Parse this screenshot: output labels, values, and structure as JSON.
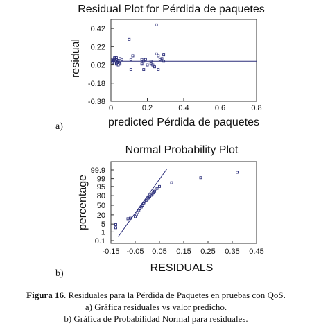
{
  "chart_data": [
    {
      "type": "scatter",
      "title": "Residual Plot for Pérdida de paquetes",
      "xlabel": "predicted Pérdida de paquetes",
      "ylabel": "residual",
      "xlim": [
        0,
        0.8
      ],
      "ylim": [
        -0.38,
        0.52
      ],
      "xticks": [
        "0",
        "0.2",
        "0.4",
        "0.6",
        "0.8"
      ],
      "yticks": [
        "-0.38",
        "-0.18",
        "0.02",
        "0.22",
        "0.42"
      ],
      "reference_line_y": 0.06,
      "x": [
        0.01,
        0.01,
        0.015,
        0.02,
        0.02,
        0.025,
        0.03,
        0.03,
        0.035,
        0.04,
        0.04,
        0.045,
        0.05,
        0.03,
        0.04,
        0.02,
        0.05,
        0.06,
        0.1,
        0.11,
        0.12,
        0.11,
        0.18,
        0.17,
        0.19,
        0.2,
        0.21,
        0.17,
        0.22,
        0.23,
        0.22,
        0.24,
        0.18,
        0.25,
        0.26,
        0.27,
        0.29,
        0.29,
        0.28,
        0.26,
        0.25
      ],
      "y": [
        0.08,
        0.05,
        0.07,
        0.04,
        0.09,
        0.06,
        0.03,
        0.08,
        0.05,
        0.02,
        0.06,
        0.04,
        0.03,
        0.1,
        0.07,
        0.1,
        0.09,
        0.08,
        0.3,
        0.08,
        0.12,
        -0.03,
        0.06,
        0.03,
        0.08,
        0.02,
        0.04,
        0.08,
        0.03,
        0.02,
        0.06,
        0.0,
        -0.03,
        0.46,
        0.12,
        0.08,
        0.13,
        0.06,
        0.09,
        -0.03,
        0.14
      ]
    },
    {
      "type": "scatter",
      "title": "Normal Probability Plot",
      "xlabel": "RESIDUALS",
      "ylabel": "percentage",
      "xlim": [
        -0.15,
        0.45
      ],
      "xticks": [
        "-0.15",
        "-0.05",
        "0.05",
        "0.15",
        "0.25",
        "0.35",
        "0.45"
      ],
      "yticks": [
        "0.1",
        "1",
        "5",
        "20",
        "50",
        "80",
        "95",
        "99",
        "99.9"
      ],
      "ytick_values": [
        0.1,
        1,
        5,
        20,
        50,
        80,
        95,
        99,
        99.9
      ],
      "x": [
        -0.13,
        -0.13,
        -0.08,
        -0.07,
        -0.05,
        -0.045,
        -0.04,
        -0.035,
        -0.03,
        -0.025,
        -0.02,
        -0.015,
        -0.01,
        -0.005,
        0.0,
        0.005,
        0.01,
        0.015,
        0.02,
        0.025,
        0.03,
        0.035,
        0.04,
        0.05,
        0.1,
        0.22,
        0.37
      ],
      "y": [
        2.5,
        4.5,
        12,
        13,
        16,
        20,
        26,
        32,
        38,
        44,
        50,
        55,
        61,
        66,
        70,
        74,
        78,
        81,
        84,
        86,
        89,
        91,
        93,
        95,
        97.5,
        99.2,
        99.8
      ],
      "fit_line": {
        "x": [
          -0.12,
          0.08
        ],
        "y": [
          0.3,
          99.92
        ]
      }
    }
  ],
  "panel_labels": {
    "a": "a)",
    "b": "b)"
  },
  "caption": {
    "label": "Figura 16",
    "line1": ". Residuales para la Pérdida de Paquetes en pruebas con QoS.",
    "line2": "a) Gráfica residuales vs valor predicho.",
    "line3": "b) Gráfica de Probabilidad Normal para residuales."
  }
}
